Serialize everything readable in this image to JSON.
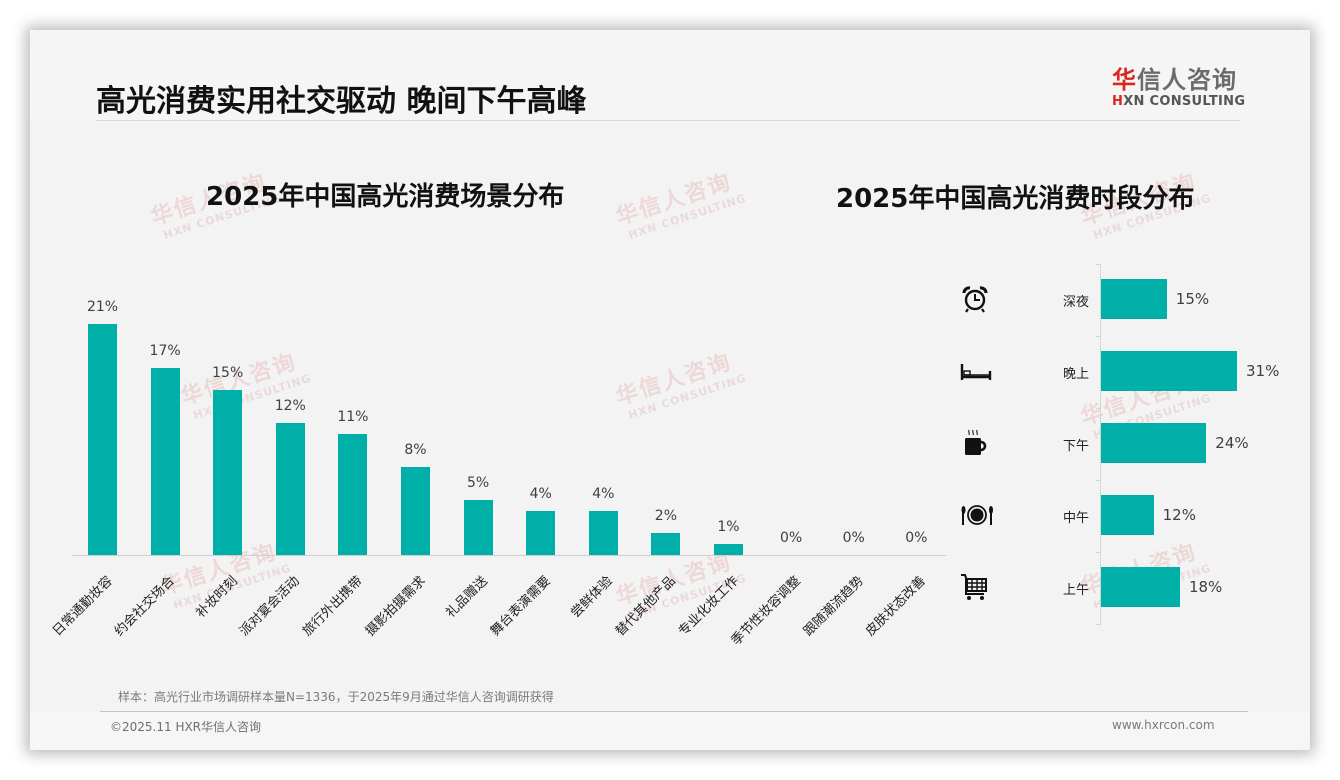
{
  "header": {
    "title": "高光消费实用社交驱动 晚间下午高峰",
    "logo_cn_red": "华",
    "logo_cn_rest": "信人咨询",
    "logo_en_red": "H",
    "logo_en_rest": "XN CONSULTING"
  },
  "watermark": {
    "cn": "华信人咨询",
    "en": "HXN CONSULTING"
  },
  "colors": {
    "bar": "#00b0a8",
    "logo_red": "#d9281e",
    "background": "#f3f3f3"
  },
  "left_chart": {
    "title": "2025年中国高光消费场景分布",
    "bars": [
      {
        "label": "日常通勤妆容",
        "value": 21,
        "display": "21%"
      },
      {
        "label": "约会社交场合",
        "value": 17,
        "display": "17%"
      },
      {
        "label": "补妆时刻",
        "value": 15,
        "display": "15%"
      },
      {
        "label": "派对宴会活动",
        "value": 12,
        "display": "12%"
      },
      {
        "label": "旅行外出携带",
        "value": 11,
        "display": "11%"
      },
      {
        "label": "摄影拍摄需求",
        "value": 8,
        "display": "8%"
      },
      {
        "label": "礼品赠送",
        "value": 5,
        "display": "5%"
      },
      {
        "label": "舞台表演需要",
        "value": 4,
        "display": "4%"
      },
      {
        "label": "尝鲜体验",
        "value": 4,
        "display": "4%"
      },
      {
        "label": "替代其他产品",
        "value": 2,
        "display": "2%"
      },
      {
        "label": "专业化妆工作",
        "value": 1,
        "display": "1%"
      },
      {
        "label": "季节性妆容调整",
        "value": 0,
        "display": "0%"
      },
      {
        "label": "跟随潮流趋势",
        "value": 0,
        "display": "0%"
      },
      {
        "label": "皮肤状态改善",
        "value": 0,
        "display": "0%"
      }
    ]
  },
  "right_chart": {
    "title": "2025年中国高光消费时段分布",
    "rows": [
      {
        "label": "深夜",
        "value": 15,
        "display": "15%",
        "icon": "alarm-clock-icon"
      },
      {
        "label": "晚上",
        "value": 31,
        "display": "31%",
        "icon": "bed-icon"
      },
      {
        "label": "下午",
        "value": 24,
        "display": "24%",
        "icon": "coffee-cup-icon"
      },
      {
        "label": "中午",
        "value": 12,
        "display": "12%",
        "icon": "plate-cutlery-icon"
      },
      {
        "label": "上午",
        "value": 18,
        "display": "18%",
        "icon": "shopping-cart-icon"
      }
    ]
  },
  "footer": {
    "sample_note": "样本：高光行业市场调研样本量N=1336，于2025年9月通过华信人咨询调研获得",
    "copyright": "©2025.11 HXR华信人咨询",
    "website": "www.hxrcon.com"
  },
  "chart_data": [
    {
      "type": "bar",
      "title": "2025年中国高光消费场景分布",
      "categories": [
        "日常通勤妆容",
        "约会社交场合",
        "补妆时刻",
        "派对宴会活动",
        "旅行外出携带",
        "摄影拍摄需求",
        "礼品赠送",
        "舞台表演需要",
        "尝鲜体验",
        "替代其他产品",
        "专业化妆工作",
        "季节性妆容调整",
        "跟随潮流趋势",
        "皮肤状态改善"
      ],
      "values": [
        21,
        17,
        15,
        12,
        11,
        8,
        5,
        4,
        4,
        2,
        1,
        0,
        0,
        0
      ],
      "unit": "%",
      "xlabel": "",
      "ylabel": "",
      "grid": false,
      "legend": null,
      "orientation": "vertical"
    },
    {
      "type": "bar",
      "title": "2025年中国高光消费时段分布",
      "categories": [
        "深夜",
        "晚上",
        "下午",
        "中午",
        "上午"
      ],
      "values": [
        15,
        31,
        24,
        12,
        18
      ],
      "unit": "%",
      "xlabel": "",
      "ylabel": "",
      "grid": false,
      "legend": null,
      "orientation": "horizontal"
    }
  ]
}
